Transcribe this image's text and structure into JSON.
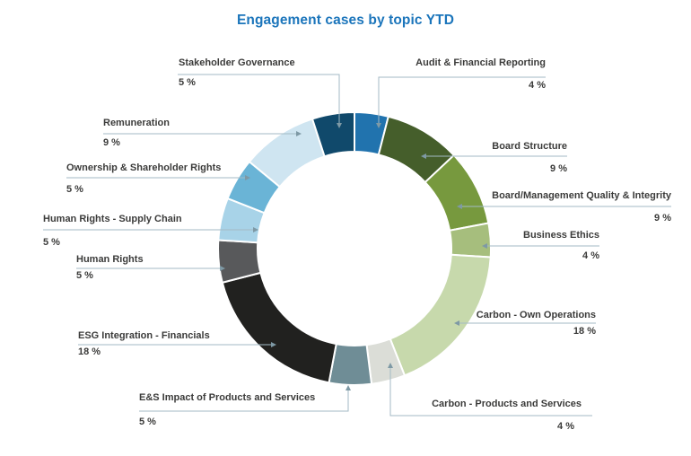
{
  "title": "Engagement cases by topic YTD",
  "colors": {
    "title_accent": "#1b75bb",
    "label_text": "#3b3b3a",
    "leader_line": "#a3bac5",
    "leader_arrow": "#7e99a5",
    "background": "#ffffff",
    "slice_gap_stroke": "#ffffff"
  },
  "chart_data": {
    "type": "pie",
    "subtype": "donut",
    "title": "Engagement cases by topic YTD",
    "start_angle_deg": 0,
    "direction": "clockwise",
    "total_percent": 100,
    "legend_position": "callout-labels-around-ring",
    "grid": false,
    "slices": [
      {
        "label": "Audit & Financial Reporting",
        "percent": 4,
        "pct_label": "4 %",
        "color": "#2173ae"
      },
      {
        "label": "Board Structure",
        "percent": 9,
        "pct_label": "9 %",
        "color": "#455e2b"
      },
      {
        "label": "Board/Management Quality & Integrity",
        "percent": 9,
        "pct_label": "9 %",
        "color": "#77993e"
      },
      {
        "label": "Business Ethics",
        "percent": 4,
        "pct_label": "4 %",
        "color": "#a6be7d"
      },
      {
        "label": "Carbon - Own Operations",
        "percent": 18,
        "pct_label": "18 %",
        "color": "#c7d9ac"
      },
      {
        "label": "Carbon - Products and Services",
        "percent": 4,
        "pct_label": "4 %",
        "color": "#dbddd7"
      },
      {
        "label": "E&S Impact of Products and Services",
        "percent": 5,
        "pct_label": "5 %",
        "color": "#6f8d96"
      },
      {
        "label": "ESG Integration - Financials",
        "percent": 18,
        "pct_label": "18 %",
        "color": "#21211f"
      },
      {
        "label": "Human Rights",
        "percent": 5,
        "pct_label": "5 %",
        "color": "#58595b"
      },
      {
        "label": "Human Rights - Supply Chain",
        "percent": 5,
        "pct_label": "5 %",
        "color": "#a8d3e8"
      },
      {
        "label": "Ownership & Shareholder Rights",
        "percent": 5,
        "pct_label": "5 %",
        "color": "#6ab4d6"
      },
      {
        "label": "Remuneration",
        "percent": 9,
        "pct_label": "9 %",
        "color": "#cfe5f1"
      },
      {
        "label": "Stakeholder Governance",
        "percent": 5,
        "pct_label": "5 %",
        "color": "#10496b"
      }
    ]
  }
}
